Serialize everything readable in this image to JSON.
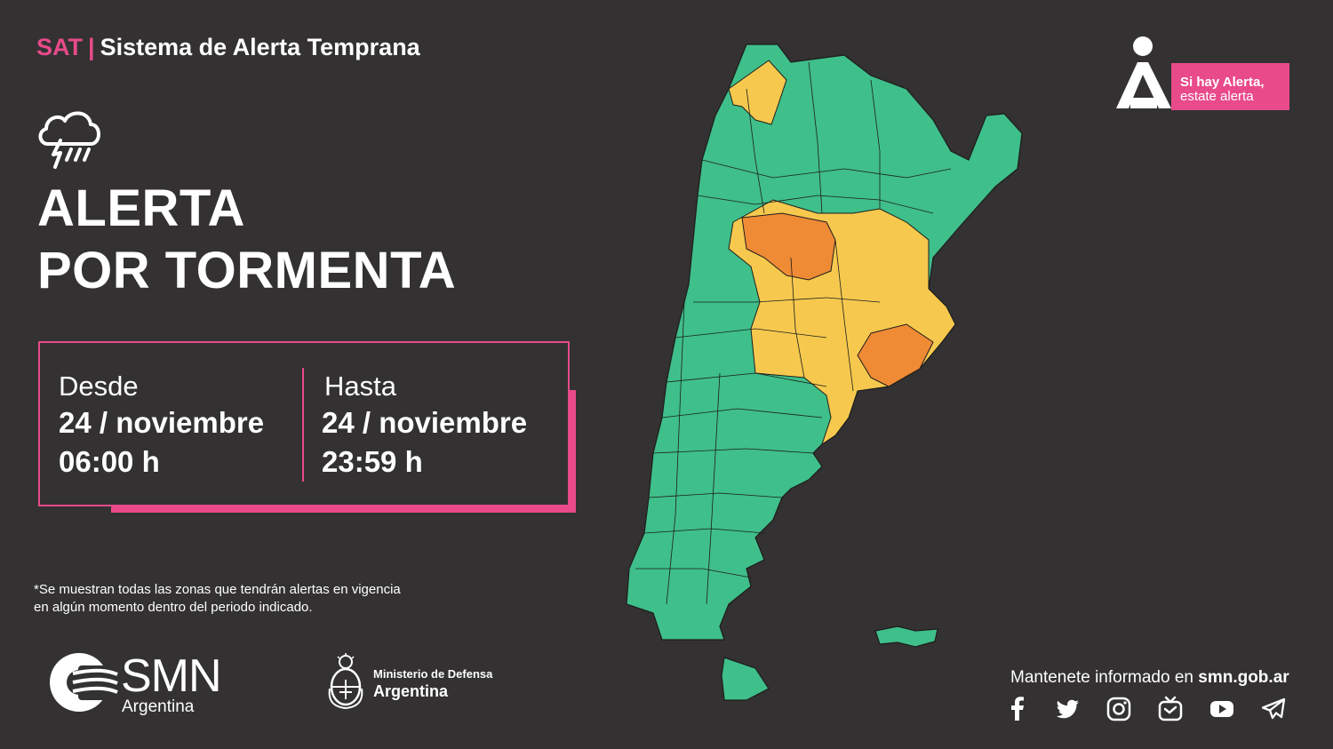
{
  "header": {
    "sat": "SAT",
    "separator": "|",
    "title": "Sistema de Alerta Temprana"
  },
  "icons": {
    "storm": "storm-cloud-icon"
  },
  "alert": {
    "line1": "ALERTA",
    "line2": "POR TORMENTA"
  },
  "period": {
    "from": {
      "label": "Desde",
      "date": "24 / noviembre",
      "time": "06:00 h"
    },
    "to": {
      "label": "Hasta",
      "date": "24 / noviembre",
      "time": "23:59 h"
    }
  },
  "note": "*Se muestran todas las zonas que tendrán alertas en vigencia en algún momento dentro del periodo indicado.",
  "logos": {
    "smn": "SMN",
    "smn_sub": "Argentina",
    "ministry_line1": "Ministerio de Defensa",
    "ministry_line2": "Argentina"
  },
  "brand": {
    "line1": "Si hay Alerta,",
    "line2": "estate alerta"
  },
  "footer": {
    "text": "Mantenete informado en ",
    "site": "smn.gob.ar"
  },
  "social": [
    "facebook-icon",
    "twitter-icon",
    "instagram-icon",
    "tv-icon",
    "youtube-icon",
    "telegram-icon"
  ],
  "colors": {
    "background": "#333132",
    "accent": "#e84a8a",
    "level_green": "#3fbf8a",
    "level_yellow": "#f6c94e",
    "level_orange": "#ef8a35"
  }
}
